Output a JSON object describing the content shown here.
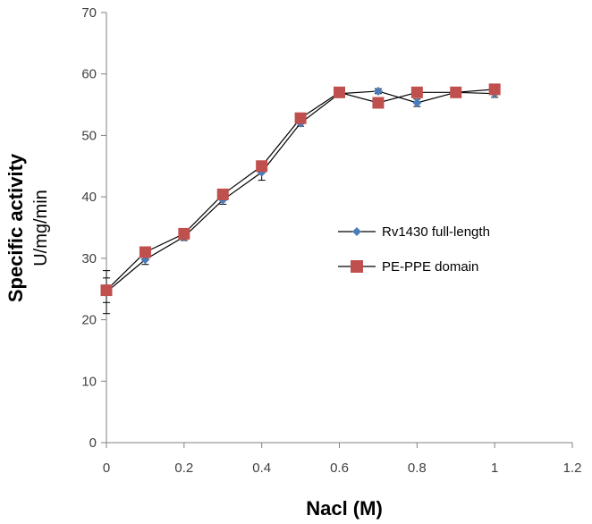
{
  "chart_data": {
    "type": "line",
    "xlabel": "Nacl (M)",
    "ylabel": "Specific activity",
    "ylabel_unit": "U/mg/min",
    "xlim": [
      0,
      1.2
    ],
    "ylim": [
      0,
      70
    ],
    "x_ticks": [
      "0",
      "0.2",
      "0.4",
      "0.6",
      "0.8",
      "1",
      "1.2"
    ],
    "y_ticks": [
      "0",
      "10",
      "20",
      "30",
      "40",
      "50",
      "60",
      "70"
    ],
    "grid": false,
    "legend_position": "right-middle",
    "series": [
      {
        "name": "Rv1430 full-length",
        "marker": "diamond",
        "color": "#4a7ebb",
        "x": [
          0,
          0.1,
          0.2,
          0.3,
          0.4,
          0.5,
          0.6,
          0.7,
          0.8,
          0.9,
          1.0
        ],
        "y": [
          24.5,
          29.8,
          33.5,
          39.5,
          44.0,
          52.0,
          56.8,
          57.2,
          55.3,
          57.0,
          56.8
        ],
        "error": [
          3.5,
          0.8,
          0.6,
          0.7,
          1.3,
          0.5,
          0.5,
          0.4,
          0.6,
          0.4,
          0.6
        ]
      },
      {
        "name": "PE-PPE domain",
        "marker": "square",
        "color": "#c0504d",
        "x": [
          0,
          0.1,
          0.2,
          0.3,
          0.4,
          0.5,
          0.6,
          0.7,
          0.8,
          0.9,
          1.0
        ],
        "y": [
          24.8,
          31.0,
          34.0,
          40.4,
          45.0,
          52.8,
          57.0,
          55.3,
          57.0,
          57.0,
          57.5
        ],
        "error": [
          2.0,
          0.5,
          0.5,
          0.5,
          0.7,
          0.5,
          0.4,
          0.4,
          0.4,
          0.4,
          0.5
        ]
      }
    ]
  }
}
